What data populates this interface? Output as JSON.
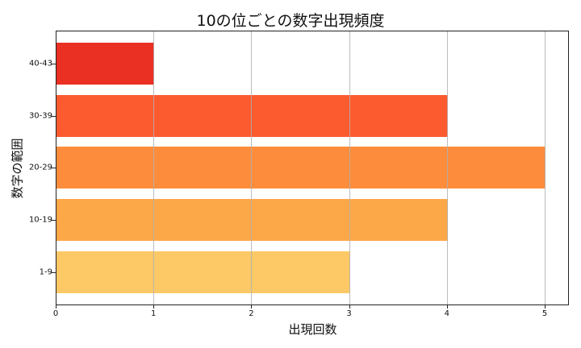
{
  "chart_data": {
    "type": "bar",
    "orientation": "horizontal",
    "title": "10の位ごとの数字出現頻度",
    "xlabel": "出現回数",
    "ylabel": "数字の範囲",
    "categories": [
      "1-9",
      "10-19",
      "20-29",
      "30-39",
      "40-43"
    ],
    "values": [
      3,
      4,
      5,
      4,
      1
    ],
    "colors": [
      "#fdc967",
      "#fda848",
      "#fd8d3c",
      "#fc5a2f",
      "#ea2f23"
    ],
    "xlim": [
      0,
      5.25
    ],
    "xticks": [
      "0",
      "1",
      "2",
      "3",
      "4",
      "5"
    ],
    "grid": "x",
    "legend": null
  }
}
